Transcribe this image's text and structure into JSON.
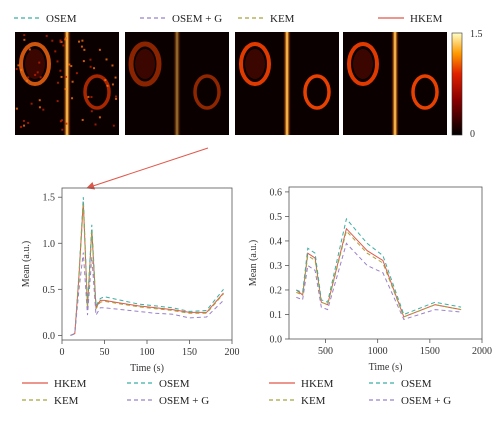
{
  "top_legend": [
    {
      "label": "OSEM",
      "color": "#3aaea3",
      "dash": "dashed"
    },
    {
      "label": "OSEM + G",
      "color": "#9a80c8",
      "dash": "dashed"
    },
    {
      "label": "KEM",
      "color": "#a8a23c",
      "dash": "dashed"
    },
    {
      "label": "HKEM",
      "color": "#e0574a",
      "dash": "solid"
    }
  ],
  "colorbar": {
    "max_label": "1.5",
    "min_label": "0"
  },
  "panels": [
    "OSEM",
    "OSEM + G",
    "KEM",
    "HKEM"
  ],
  "colors": {
    "HKEM": "#e0574a",
    "OSEM": "#3aaea3",
    "KEM": "#a8a23c",
    "OSEM + G": "#9a80c8",
    "arrow": "#e0574a"
  },
  "chart_data": [
    {
      "type": "line",
      "xlabel": "Time (s)",
      "ylabel": "Mean (a.u.)",
      "xlim": [
        0,
        200
      ],
      "ylim": [
        -0.05,
        1.6
      ],
      "xticks": [
        0,
        50,
        100,
        150,
        200
      ],
      "yticks": [
        0.0,
        0.5,
        1.0,
        1.5
      ],
      "x": [
        10,
        15,
        20,
        25,
        30,
        35,
        40,
        45,
        50,
        70,
        90,
        110,
        130,
        150,
        170,
        190
      ],
      "series": [
        {
          "name": "HKEM",
          "values": [
            0.0,
            0.02,
            0.65,
            1.45,
            0.3,
            1.15,
            0.3,
            0.38,
            0.38,
            0.35,
            0.32,
            0.3,
            0.28,
            0.25,
            0.25,
            0.46
          ]
        },
        {
          "name": "OSEM",
          "values": [
            0.0,
            0.02,
            0.68,
            1.5,
            0.32,
            1.2,
            0.32,
            0.4,
            0.42,
            0.38,
            0.34,
            0.32,
            0.3,
            0.26,
            0.27,
            0.5
          ]
        },
        {
          "name": "KEM",
          "values": [
            0.0,
            0.02,
            0.63,
            1.42,
            0.29,
            1.13,
            0.29,
            0.36,
            0.37,
            0.34,
            0.31,
            0.29,
            0.27,
            0.24,
            0.24,
            0.45
          ]
        },
        {
          "name": "OSEM + G",
          "values": [
            0.0,
            0.02,
            0.5,
            0.9,
            0.22,
            0.85,
            0.22,
            0.3,
            0.3,
            0.28,
            0.26,
            0.24,
            0.23,
            0.19,
            0.2,
            0.38
          ]
        }
      ],
      "legend": [
        "HKEM",
        "OSEM",
        "KEM",
        "OSEM + G"
      ]
    },
    {
      "type": "line",
      "xlabel": "Time (s)",
      "ylabel": "Mean (a.u.)",
      "xlim": [
        150,
        2000
      ],
      "ylim": [
        0.0,
        0.62
      ],
      "xticks": [
        500,
        1000,
        1500,
        2000
      ],
      "yticks": [
        0.0,
        0.1,
        0.2,
        0.3,
        0.4,
        0.5,
        0.6
      ],
      "x": [
        220,
        280,
        330,
        400,
        460,
        520,
        700,
        900,
        1050,
        1250,
        1550,
        1800
      ],
      "series": [
        {
          "name": "HKEM",
          "values": [
            0.2,
            0.18,
            0.35,
            0.33,
            0.15,
            0.14,
            0.45,
            0.36,
            0.32,
            0.09,
            0.14,
            0.12
          ]
        },
        {
          "name": "OSEM",
          "values": [
            0.2,
            0.19,
            0.37,
            0.35,
            0.16,
            0.15,
            0.49,
            0.39,
            0.34,
            0.1,
            0.15,
            0.13
          ]
        },
        {
          "name": "KEM",
          "values": [
            0.19,
            0.18,
            0.34,
            0.32,
            0.15,
            0.14,
            0.44,
            0.35,
            0.31,
            0.09,
            0.14,
            0.12
          ]
        },
        {
          "name": "OSEM + G",
          "values": [
            0.17,
            0.16,
            0.3,
            0.28,
            0.13,
            0.12,
            0.39,
            0.3,
            0.27,
            0.08,
            0.12,
            0.11
          ]
        }
      ],
      "legend": [
        "HKEM",
        "OSEM",
        "KEM",
        "OSEM + G"
      ]
    }
  ]
}
